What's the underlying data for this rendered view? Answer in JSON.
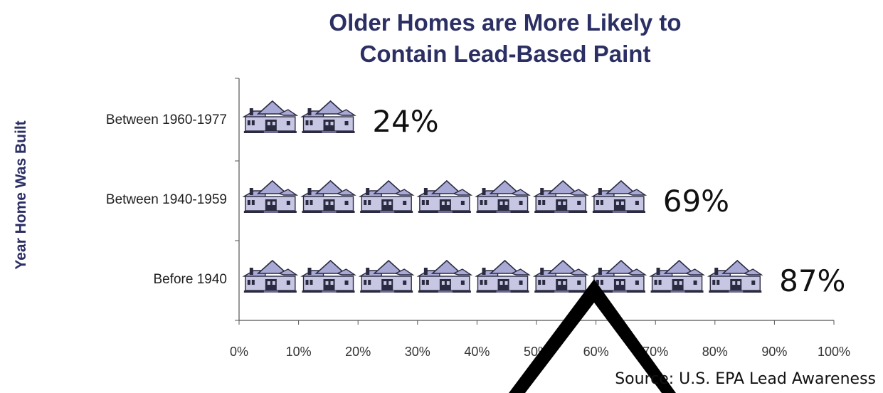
{
  "chart_data": {
    "type": "bar",
    "title_lines": [
      "Older Homes are More Likely to",
      "Contain Lead-Based Paint"
    ],
    "ylabel": "Year Home Was Built",
    "xlabel": "",
    "categories": [
      "Between 1960-1977",
      "Between 1940-1959",
      "Before 1940"
    ],
    "values": [
      24,
      69,
      87
    ],
    "value_labels": [
      "24%",
      "69%",
      "87%"
    ],
    "x_ticks": [
      "0%",
      "10%",
      "20%",
      "30%",
      "40%",
      "50%",
      "60%",
      "70%",
      "80%",
      "90%",
      "100%"
    ],
    "xlim": [
      0,
      100
    ],
    "bar_style": "house pictograph",
    "grid": false,
    "colors": {
      "house_fill": "#a9a9d6",
      "house_dark": "#2a2a40",
      "title": "#2b2f63"
    }
  },
  "footer": {
    "source": "Source: U.S. EPA Lead Awareness"
  }
}
